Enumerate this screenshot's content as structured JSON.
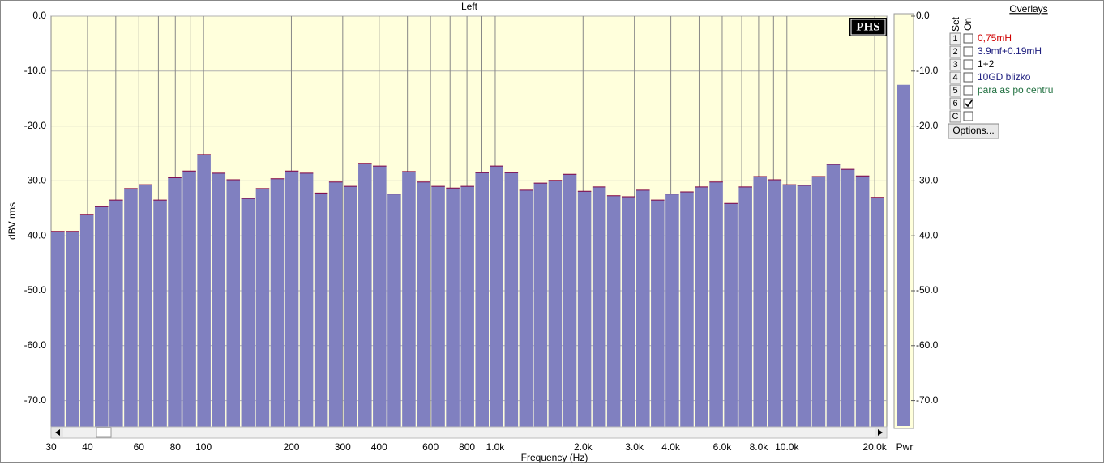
{
  "chart_data": {
    "type": "bar",
    "title": "Left",
    "x_label": "Frequency (Hz)",
    "y_label": "dBV rms",
    "x": [
      31.8,
      35.7,
      40.0,
      44.9,
      50.4,
      56.6,
      63.5,
      71.3,
      80.0,
      89.8,
      100.8,
      113.2,
      127.0,
      142.6,
      160.1,
      179.7,
      201.7,
      226.4,
      254.1,
      285.2,
      320.2,
      359.4,
      403.4,
      452.8,
      508.2,
      570.5,
      640.3,
      718.7,
      806.8,
      905.6,
      1016,
      1141,
      1281,
      1437,
      1613,
      1811,
      2033,
      2282,
      2561,
      2875,
      3227,
      3622,
      4066,
      4564,
      5123,
      5750,
      6455,
      7245,
      8133,
      9129,
      10247,
      11502,
      12910,
      14491,
      16266,
      18258,
      20494
    ],
    "values": [
      -39.2,
      -39.2,
      -36.1,
      -34.7,
      -33.5,
      -31.4,
      -30.7,
      -33.5,
      -29.4,
      -28.2,
      -25.2,
      -28.6,
      -29.8,
      -33.2,
      -31.4,
      -29.6,
      -28.2,
      -28.6,
      -32.2,
      -30.2,
      -31.0,
      -26.8,
      -27.3,
      -32.4,
      -28.3,
      -30.2,
      -31.0,
      -31.3,
      -31.0,
      -28.5,
      -27.3,
      -28.5,
      -31.7,
      -30.4,
      -29.9,
      -28.8,
      -31.9,
      -31.1,
      -32.7,
      -32.9,
      -31.7,
      -33.5,
      -32.4,
      -32.0,
      -31.1,
      -30.2,
      -34.1,
      -31.1,
      -29.2,
      -29.8,
      -30.7,
      -30.8,
      -29.2,
      -27.0,
      -27.9,
      -29.1,
      -33.0
    ],
    "color": "#8080c0",
    "background": "#ffffdc",
    "log_x": true,
    "grid": true,
    "xlim": [
      30,
      22000
    ],
    "xticks": [
      30,
      40,
      60,
      80,
      100,
      200,
      300,
      400,
      600,
      800,
      {
        "value": 1000,
        "label": "1.0k"
      },
      {
        "value": 2000,
        "label": "2.0k"
      },
      {
        "value": 3000,
        "label": "3.0k"
      },
      {
        "value": 4000,
        "label": "4.0k"
      },
      {
        "value": 6000,
        "label": "6.0k"
      },
      {
        "value": 8000,
        "label": "8.0k"
      },
      {
        "value": 10000,
        "label": "10.0k"
      },
      {
        "value": 20000,
        "label": "20.0k"
      }
    ],
    "xminor": [
      50,
      70,
      90,
      500,
      700,
      900,
      5000,
      7000,
      9000
    ],
    "ylim": [
      -75,
      0
    ],
    "yticks": [
      {
        "value": 0,
        "label": "0.0"
      },
      {
        "value": -10,
        "label": "-10.0"
      },
      {
        "value": -20,
        "label": "-20.0"
      },
      {
        "value": -30,
        "label": "-30.0"
      },
      {
        "value": -40,
        "label": "-40.0"
      },
      {
        "value": -50,
        "label": "-50.0"
      },
      {
        "value": -60,
        "label": "-60.0"
      },
      {
        "value": -70,
        "label": "-70.0"
      }
    ]
  },
  "meter": {
    "label": "Pwr",
    "value": -12.5,
    "color": "#8080c0"
  },
  "logo": "PHS",
  "overlays": {
    "title": "Overlays",
    "set_header": "Set",
    "on_header": "On",
    "button": "Options...",
    "rows": [
      {
        "set": "1",
        "label": "0,75mH",
        "color": "#d00000",
        "checked": false
      },
      {
        "set": "2",
        "label": "3.9mf+0.19mH",
        "color": "#202080",
        "checked": false
      },
      {
        "set": "3",
        "label": "1+2",
        "color": "#000000",
        "checked": false
      },
      {
        "set": "4",
        "label": "10GD blizko",
        "color": "#202080",
        "checked": false
      },
      {
        "set": "5",
        "label": "para as po centru",
        "color": "#207040",
        "checked": false
      },
      {
        "set": "6",
        "checked": true
      },
      {
        "set": "C",
        "checked": false
      }
    ]
  }
}
